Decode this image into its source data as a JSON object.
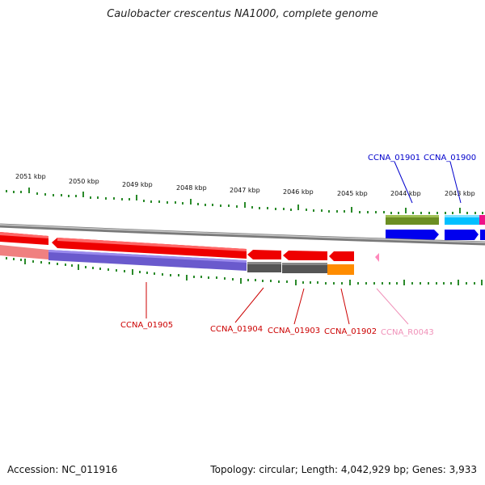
{
  "title": "Caulobacter crescentus NA1000, complete genome",
  "footer": {
    "accession": "Accession: NC_011916",
    "topology": "Topology: circular; Length: 4,042,929 bp; Genes: 3,933"
  },
  "colors": {
    "ruler_ticks": "#2a8a2a",
    "backbone": "#8a8a8a",
    "forward_gene_label": "#0000cc",
    "reverse_gene_label": "#cc0000",
    "rna_label": "#f090b8"
  },
  "ruler": {
    "labels": [
      "2051 kbp",
      "2050 kbp",
      "2049 kbp",
      "2048 kbp",
      "2047 kbp",
      "2046 kbp",
      "2045 kbp",
      "2044 kbp",
      "2043 kbp"
    ]
  },
  "genes": [
    {
      "name": "CCNA_01901",
      "strand": "+",
      "color": "#0000ee",
      "cds_color": "#6b8e23"
    },
    {
      "name": "CCNA_01900",
      "strand": "+",
      "color": "#0000ee",
      "cds_color": "#00bfff"
    },
    {
      "name": "CCNA_01905",
      "strand": "-",
      "color": "#ee0000",
      "cds_color": "#6a5acd"
    },
    {
      "name": "CCNA_01904",
      "strand": "-",
      "color": "#ee0000",
      "cds_color": "#555555"
    },
    {
      "name": "CCNA_01903",
      "strand": "-",
      "color": "#ee0000",
      "cds_color": "#555555"
    },
    {
      "name": "CCNA_01902",
      "strand": "-",
      "color": "#ee0000",
      "cds_color": "#ff8c00"
    },
    {
      "name": "CCNA_R0043",
      "strand": "-",
      "color": "#ffaacc",
      "cds_color": "#ffaacc"
    }
  ]
}
